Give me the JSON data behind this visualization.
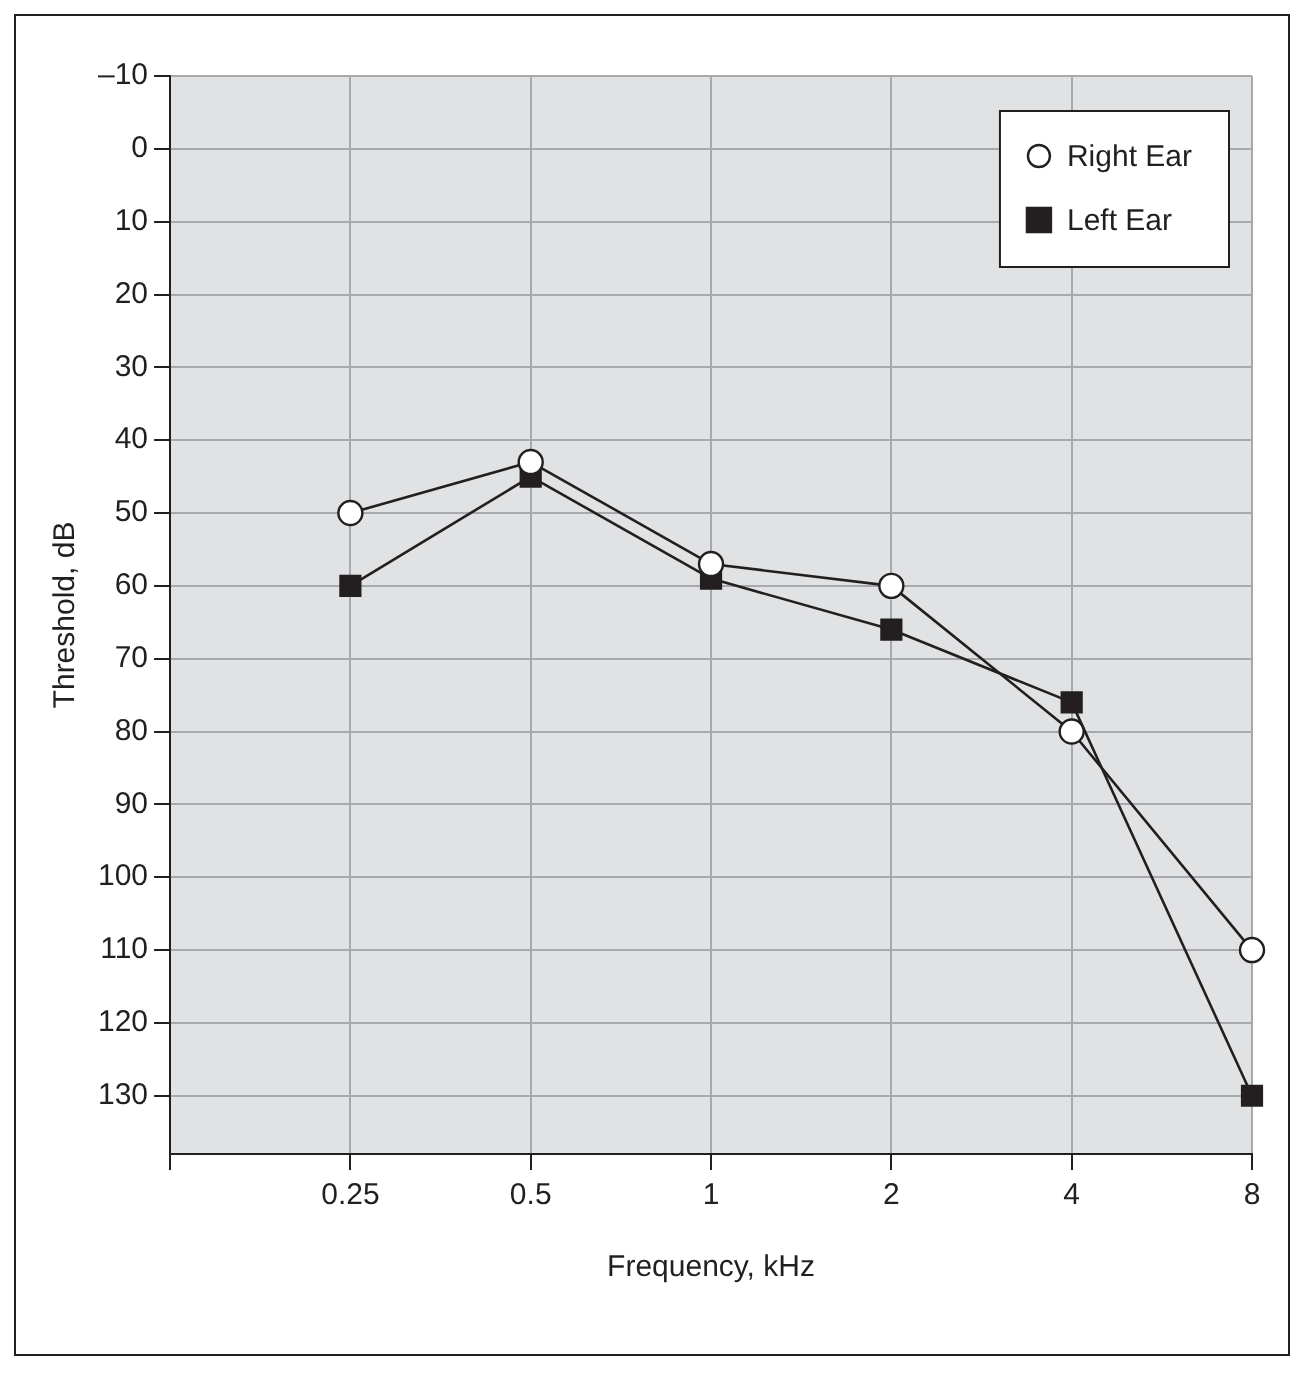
{
  "chart_data": {
    "type": "line",
    "xlabel": "Frequency, kHz",
    "ylabel": "Threshold, dB",
    "categories": [
      null,
      "0.25",
      "0.5",
      "1",
      "2",
      "4",
      "8"
    ],
    "series": [
      {
        "name": "Right Ear",
        "color": "#231f20",
        "marker": "circle",
        "values": [
          null,
          50,
          43,
          57,
          60,
          80,
          110
        ]
      },
      {
        "name": "Left Ear",
        "color": "#231f20",
        "marker": "square",
        "values": [
          null,
          60,
          45,
          59,
          66,
          76,
          130
        ]
      }
    ],
    "ylim": [
      138,
      -10
    ],
    "yticks": [
      {
        "value": -10,
        "label": "–10"
      },
      0,
      10,
      20,
      30,
      40,
      50,
      60,
      70,
      80,
      90,
      100,
      110,
      120,
      130
    ],
    "grid": true,
    "legend": "top right"
  }
}
